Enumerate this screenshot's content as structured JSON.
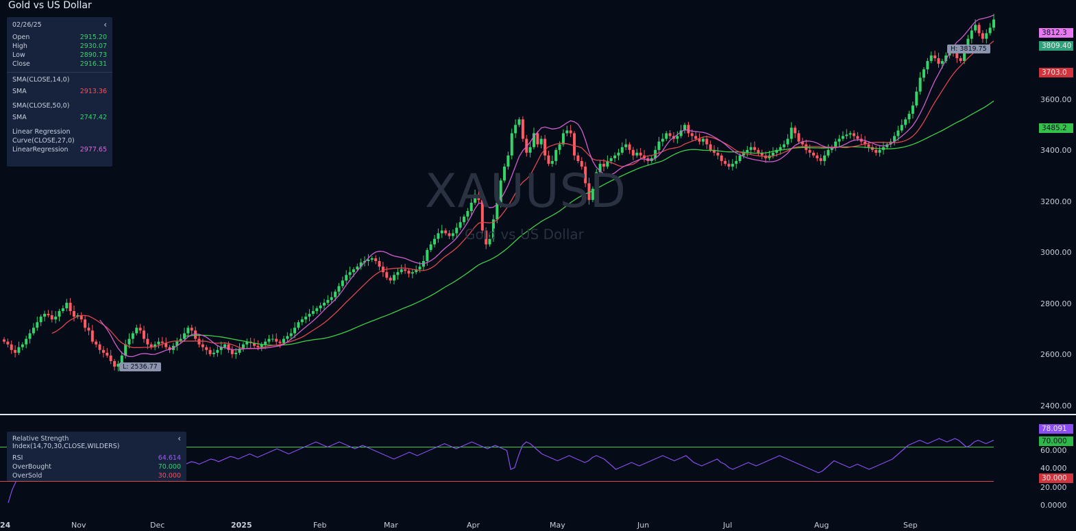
{
  "title": "Gold vs US Dollar",
  "watermark": {
    "symbol": "XAUUSD",
    "name": "Gold vs US Dollar"
  },
  "colors": {
    "background": "#050b17",
    "up": "#35d46a",
    "down": "#ff5a64",
    "sma14": "#e0484f",
    "sma50": "#3fcf4a",
    "linreg": "#d05fd0",
    "rsi": "#8a4df0",
    "overbought": "#3fcf4a",
    "oversold": "#e0484f"
  },
  "icons": {
    "collapse": "chevron-left-icon"
  },
  "ohlc_panel": {
    "date": "02/26/25",
    "rows": [
      {
        "label": "Open",
        "value": "2915.20"
      },
      {
        "label": "High",
        "value": "2930.07"
      },
      {
        "label": "Low",
        "value": "2890.73"
      },
      {
        "label": "Close",
        "value": "2916.31"
      }
    ],
    "sma14": {
      "title": "SMA(CLOSE,14,0)",
      "label": "SMA",
      "value": "2913.36"
    },
    "sma50": {
      "title": "SMA(CLOSE,50,0)",
      "label": "SMA",
      "value": "2747.42"
    },
    "linreg": {
      "title_line1": "Linear Regression",
      "title_line2": "Curve(CLOSE,27,0)",
      "label": "LinearRegression",
      "value": "2977.65"
    }
  },
  "rsi_panel": {
    "title": "Relative Strength Index(14,70,30,CLOSE,WILDERS)",
    "rows": [
      {
        "label": "RSI",
        "value": "64.614"
      },
      {
        "label": "OverBought",
        "value": "70.000"
      },
      {
        "label": "OverSold",
        "value": "30.000"
      }
    ]
  },
  "price_axis": {
    "ticks": [
      "3600.00",
      "3400.00",
      "3200.00",
      "3000.00",
      "2800.00",
      "2600.00",
      "2400.00"
    ]
  },
  "price_tags": [
    {
      "value": "3812.3",
      "color": "#e879f0"
    },
    {
      "value": "3809.40",
      "color": "#2fa07a"
    },
    {
      "value": "3703.0",
      "color": "#d0343f"
    },
    {
      "value": "3485.2",
      "color": "#35c24a"
    }
  ],
  "rsi_axis": {
    "ticks": [
      "60.000",
      "40.000",
      "20.000",
      "0.0000"
    ]
  },
  "rsi_tags": [
    {
      "value": "78.091",
      "color": "#8a4df0"
    },
    {
      "value": "70.000",
      "color": "#2fb84a"
    },
    {
      "value": "30.000",
      "color": "#d0343f"
    }
  ],
  "x_axis": {
    "labels": [
      "24",
      "Nov",
      "Dec",
      "2025",
      "Feb",
      "Mar",
      "Apr",
      "May",
      "Jun",
      "Jul",
      "Aug",
      "Sep"
    ]
  },
  "high_flag": "H: 3819.75",
  "low_flag": "L: 2536.77",
  "chart_data": {
    "type": "candlestick",
    "symbol": "XAUUSD",
    "ylim": [
      2400,
      3850
    ],
    "rsi_ylim": [
      0,
      100
    ],
    "overbought": 70,
    "oversold": 30,
    "closes": [
      2650,
      2640,
      2620,
      2610,
      2630,
      2640,
      2660,
      2680,
      2700,
      2720,
      2740,
      2750,
      2745,
      2730,
      2740,
      2760,
      2770,
      2790,
      2760,
      2740,
      2745,
      2730,
      2700,
      2690,
      2650,
      2640,
      2620,
      2610,
      2600,
      2580,
      2560,
      2570,
      2600,
      2640,
      2660,
      2680,
      2700,
      2690,
      2660,
      2640,
      2630,
      2640,
      2650,
      2645,
      2630,
      2620,
      2635,
      2650,
      2660,
      2680,
      2700,
      2690,
      2660,
      2640,
      2630,
      2620,
      2605,
      2610,
      2620,
      2630,
      2640,
      2620,
      2605,
      2610,
      2625,
      2640,
      2650,
      2645,
      2635,
      2630,
      2640,
      2650,
      2660,
      2660,
      2650,
      2645,
      2660,
      2670,
      2680,
      2700,
      2720,
      2730,
      2740,
      2750,
      2760,
      2770,
      2780,
      2790,
      2800,
      2810,
      2830,
      2850,
      2870,
      2890,
      2900,
      2910,
      2920,
      2935,
      2940,
      2945,
      2950,
      2940,
      2920,
      2900,
      2880,
      2870,
      2890,
      2900,
      2910,
      2905,
      2895,
      2900,
      2910,
      2920,
      2940,
      2980,
      3000,
      3020,
      3040,
      3050,
      3040,
      3030,
      3040,
      3060,
      3080,
      3100,
      3120,
      3150,
      3180,
      3160,
      3050,
      3000,
      3020,
      3090,
      3150,
      3230,
      3280,
      3320,
      3400,
      3430,
      3450,
      3380,
      3330,
      3350,
      3400,
      3360,
      3380,
      3320,
      3290,
      3300,
      3340,
      3360,
      3400,
      3410,
      3400,
      3320,
      3300,
      3280,
      3220,
      3160,
      3200,
      3260,
      3290,
      3280,
      3300,
      3310,
      3320,
      3330,
      3350,
      3360,
      3340,
      3320,
      3330,
      3320,
      3310,
      3300,
      3310,
      3340,
      3370,
      3380,
      3400,
      3390,
      3380,
      3390,
      3410,
      3430,
      3400,
      3390,
      3380,
      3370,
      3380,
      3360,
      3340,
      3330,
      3320,
      3300,
      3290,
      3280,
      3290,
      3300,
      3320,
      3330,
      3340,
      3350,
      3340,
      3330,
      3320,
      3310,
      3320,
      3330,
      3340,
      3350,
      3360,
      3380,
      3420,
      3400,
      3370,
      3360,
      3340,
      3330,
      3320,
      3310,
      3300,
      3320,
      3340,
      3350,
      3370,
      3380,
      3390,
      3395,
      3400,
      3390,
      3380,
      3370,
      3360,
      3350,
      3340,
      3330,
      3340,
      3350,
      3360,
      3370,
      3390,
      3410,
      3430,
      3450,
      3470,
      3500,
      3550,
      3600,
      3630,
      3660,
      3680,
      3670,
      3650,
      3660,
      3680,
      3700,
      3690,
      3670,
      3660,
      3700,
      3740,
      3770,
      3790,
      3760,
      3740,
      3760,
      3780,
      3809.4
    ],
    "rsi_values": [
      5,
      20,
      30,
      40,
      48,
      55,
      60,
      58,
      55,
      52,
      50,
      48,
      46,
      44,
      45,
      47,
      46,
      44,
      42,
      40,
      42,
      44,
      46,
      48,
      46,
      44,
      42,
      40,
      38,
      36,
      38,
      42,
      46,
      50,
      48,
      46,
      44,
      42,
      44,
      46,
      48,
      46,
      44,
      45,
      47,
      49,
      51,
      53,
      52,
      50,
      52,
      54,
      56,
      55,
      53,
      55,
      57,
      59,
      58,
      56,
      58,
      60,
      62,
      60,
      58,
      60,
      62,
      64,
      66,
      68,
      66,
      64,
      62,
      64,
      66,
      68,
      70,
      72,
      74,
      76,
      74,
      72,
      70,
      72,
      74,
      76,
      74,
      72,
      70,
      68,
      70,
      72,
      70,
      68,
      66,
      64,
      62,
      60,
      58,
      56,
      58,
      60,
      62,
      64,
      62,
      60,
      62,
      64,
      66,
      68,
      70,
      72,
      74,
      72,
      70,
      68,
      70,
      72,
      74,
      76,
      74,
      72,
      70,
      68,
      70,
      72,
      70,
      68,
      66,
      44,
      46,
      60,
      72,
      76,
      74,
      70,
      66,
      62,
      60,
      58,
      56,
      54,
      56,
      58,
      60,
      58,
      56,
      54,
      52,
      54,
      58,
      60,
      58,
      56,
      52,
      48,
      44,
      46,
      48,
      50,
      52,
      50,
      48,
      50,
      52,
      54,
      56,
      58,
      60,
      58,
      56,
      54,
      56,
      58,
      60,
      56,
      52,
      50,
      48,
      50,
      52,
      54,
      56,
      52,
      50,
      46,
      44,
      46,
      48,
      50,
      52,
      50,
      48,
      50,
      52,
      54,
      56,
      58,
      60,
      58,
      56,
      54,
      52,
      50,
      48,
      46,
      44,
      42,
      40,
      42,
      46,
      50,
      54,
      52,
      50,
      48,
      46,
      48,
      50,
      48,
      46,
      44,
      46,
      48,
      50,
      52,
      54,
      56,
      60,
      64,
      68,
      72,
      74,
      76,
      78,
      76,
      74,
      76,
      78,
      80,
      78,
      76,
      78,
      80,
      78,
      74,
      70,
      72,
      76,
      78,
      76,
      74,
      76,
      78.1
    ],
    "sma14_end": 3703.0,
    "sma50_end": 3485.2,
    "linreg_end": 3812.3,
    "high": 3819.75,
    "low": 2536.77
  }
}
